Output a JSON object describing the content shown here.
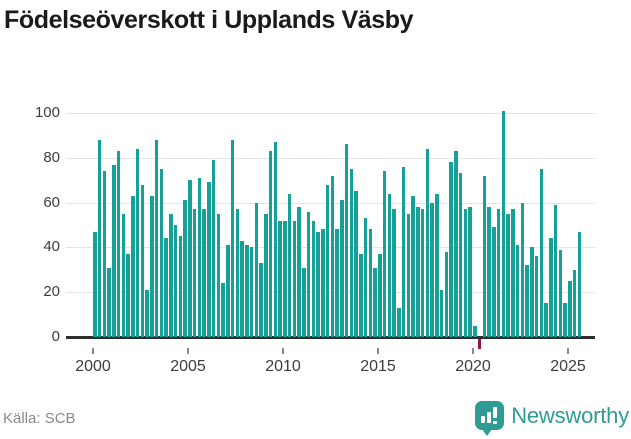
{
  "title": "Födelseöverskott i Upplands Väsby",
  "footer": {
    "source": "Källa: SCB",
    "brand": "Newsworthy"
  },
  "colors": {
    "bar": "#16a096",
    "negative_bar": "#97164a",
    "title": "#1a1a1a",
    "axis_line": "#2e2e2e",
    "grid": "#e4e4e4",
    "tick_label": "#3d3d3d",
    "muted_text": "#8a8a8a",
    "brand_teal": "#2e9c93"
  },
  "chart_data": {
    "type": "bar",
    "title": "Födelseöverskott i Upplands Väsby",
    "xlabel": "",
    "ylabel": "",
    "frequency": "quarterly",
    "start_year": 2000,
    "start_quarter": 1,
    "end_year": 2025,
    "end_quarter": 3,
    "yticks": [
      0,
      20,
      40,
      60,
      80,
      100
    ],
    "xticks": [
      2000,
      2005,
      2010,
      2015,
      2020,
      2025
    ],
    "ylim": [
      -10,
      105
    ],
    "grid": true,
    "legend": false,
    "values": [
      47,
      88,
      74,
      31,
      77,
      83,
      55,
      37,
      63,
      84,
      68,
      21,
      63,
      88,
      75,
      44,
      55,
      50,
      45,
      61,
      70,
      57,
      71,
      57,
      69,
      79,
      55,
      24,
      41,
      88,
      57,
      43,
      41,
      40,
      60,
      33,
      55,
      83,
      87,
      52,
      52,
      64,
      52,
      58,
      31,
      56,
      52,
      47,
      48,
      68,
      72,
      48,
      61,
      86,
      75,
      65,
      37,
      53,
      48,
      31,
      37,
      74,
      64,
      57,
      13,
      76,
      55,
      63,
      58,
      57,
      84,
      60,
      64,
      21,
      38,
      78,
      83,
      73,
      57,
      58,
      5,
      -5,
      72,
      58,
      49,
      57,
      101,
      55,
      57,
      41,
      60,
      32,
      40,
      36,
      75,
      15,
      44,
      59,
      39,
      15,
      25,
      30,
      47
    ]
  }
}
